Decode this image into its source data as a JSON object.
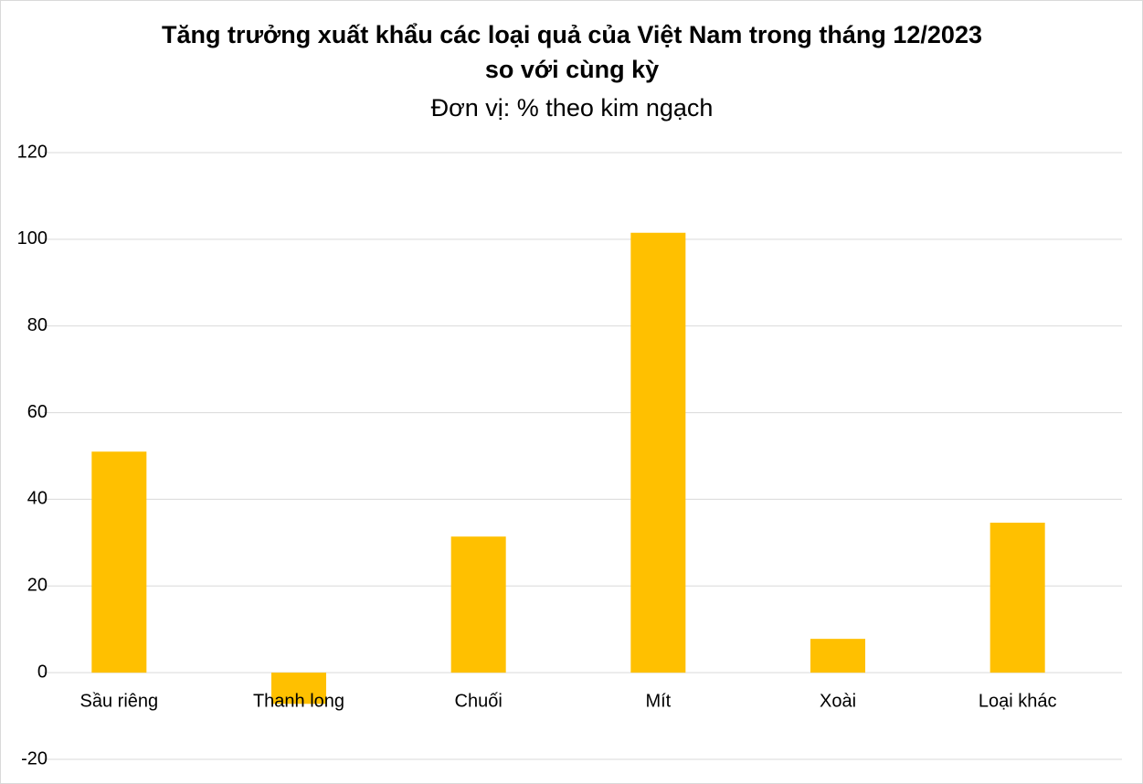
{
  "chart_data": {
    "type": "bar",
    "title": [
      "Tăng trưởng xuất khẩu các loại quả của Việt Nam trong tháng 12/2023",
      "so với cùng kỳ"
    ],
    "subtitle": "Đơn vị: % theo kim ngạch",
    "categories": [
      "Sầu riêng",
      "Thanh long",
      "Chuối",
      "Mít",
      "Xoài",
      "Loại khác"
    ],
    "values": [
      51.0,
      -7.2,
      31.4,
      101.5,
      7.8,
      34.6
    ],
    "color": "#ffc000",
    "ylim": [
      -20,
      120
    ],
    "yticks": [
      -20,
      0,
      20,
      40,
      60,
      80,
      100,
      120
    ],
    "grid": true
  }
}
